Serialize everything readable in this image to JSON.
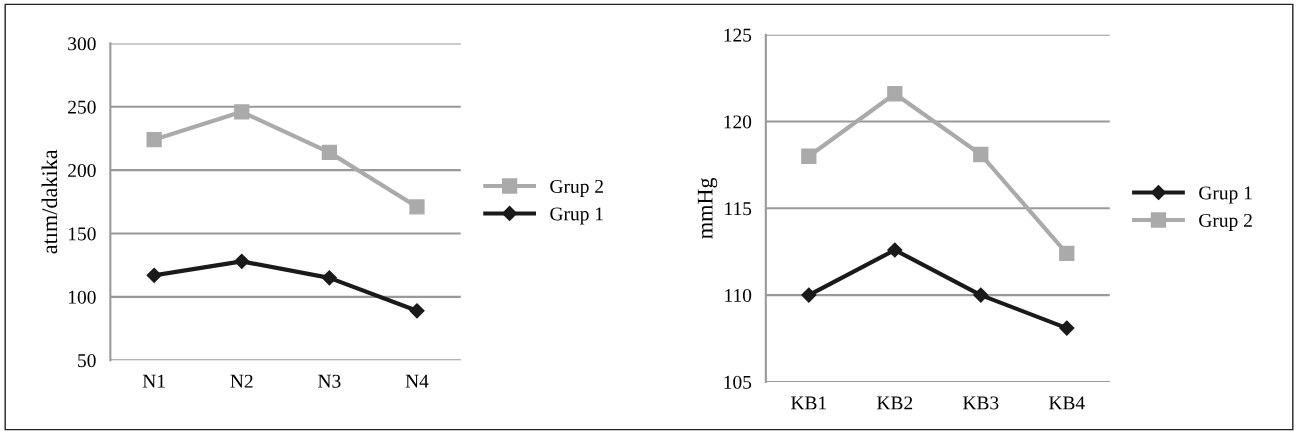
{
  "chart_data": [
    {
      "type": "line",
      "ylabel": "atım/dakika",
      "categories": [
        "N1",
        "N2",
        "N3",
        "N4"
      ],
      "ylim": [
        50,
        300
      ],
      "yticks": [
        50,
        100,
        150,
        200,
        250,
        300
      ],
      "grid": "y",
      "legend": "right",
      "series": [
        {
          "name": "Grup 2",
          "color": "#aaaaaa",
          "marker": "square",
          "values": [
            224,
            246,
            214,
            171
          ]
        },
        {
          "name": "Grup 1",
          "color": "#1a1a1a",
          "marker": "diamond",
          "values": [
            117,
            128,
            115,
            89
          ]
        }
      ]
    },
    {
      "type": "line",
      "ylabel": "mmHg",
      "categories": [
        "KB1",
        "KB2",
        "KB3",
        "KB4"
      ],
      "ylim": [
        105,
        125
      ],
      "yticks": [
        105,
        110,
        115,
        120,
        125
      ],
      "grid": "y",
      "legend": "right",
      "series": [
        {
          "name": "Grup 1",
          "color": "#1a1a1a",
          "marker": "diamond",
          "values": [
            110.0,
            112.6,
            110.0,
            108.1
          ]
        },
        {
          "name": "Grup 2",
          "color": "#aaaaaa",
          "marker": "square",
          "values": [
            118.0,
            121.6,
            118.1,
            112.4
          ]
        }
      ]
    }
  ]
}
